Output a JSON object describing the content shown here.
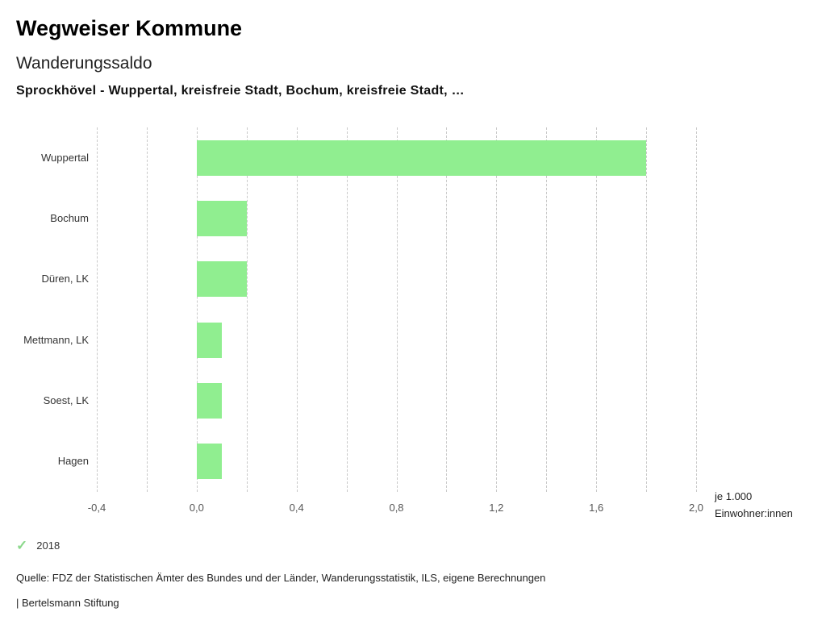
{
  "header": {
    "title": "Wegweiser Kommune",
    "subtitle": "Wanderungssaldo",
    "description": "Sprockhövel - Wuppertal, kreisfreie Stadt, Bochum, kreisfreie Stadt, …"
  },
  "chart_data": {
    "type": "bar",
    "orientation": "horizontal",
    "title": "Wanderungssaldo",
    "categories": [
      "Wuppertal",
      "Bochum",
      "Düren, LK",
      "Mettmann, LK",
      "Soest, LK",
      "Hagen"
    ],
    "series": [
      {
        "name": "2018",
        "values": [
          1.8,
          0.2,
          0.2,
          0.1,
          0.1,
          0.1
        ]
      }
    ],
    "xlim": [
      -0.4,
      2.0
    ],
    "gridlines": [
      -0.4,
      -0.2,
      0.0,
      0.2,
      0.4,
      0.6,
      0.8,
      1.0,
      1.2,
      1.4,
      1.6,
      1.8,
      2.0
    ],
    "ticks": [
      {
        "value": -0.4,
        "label": "-0,4"
      },
      {
        "value": 0.0,
        "label": "0,0"
      },
      {
        "value": 0.4,
        "label": "0,4"
      },
      {
        "value": 0.8,
        "label": "0,8"
      },
      {
        "value": 1.2,
        "label": "1,2"
      },
      {
        "value": 1.6,
        "label": "1,6"
      },
      {
        "value": 2.0,
        "label": "2,0"
      }
    ],
    "xlabel_line1": "je 1.000",
    "xlabel_line2": "Einwohner:innen",
    "grid": "vertical-dashed",
    "legend_position": "bottom-left",
    "bar_color": "#90ee90"
  },
  "legend": {
    "check_glyph": "✓",
    "check_color": "#8bd88b",
    "year": "2018"
  },
  "footer": {
    "source": "Quelle: FDZ der Statistischen Ämter des Bundes und der Länder, Wanderungsstatistik, ILS, eigene Berechnungen",
    "branding": "| Bertelsmann Stiftung"
  }
}
